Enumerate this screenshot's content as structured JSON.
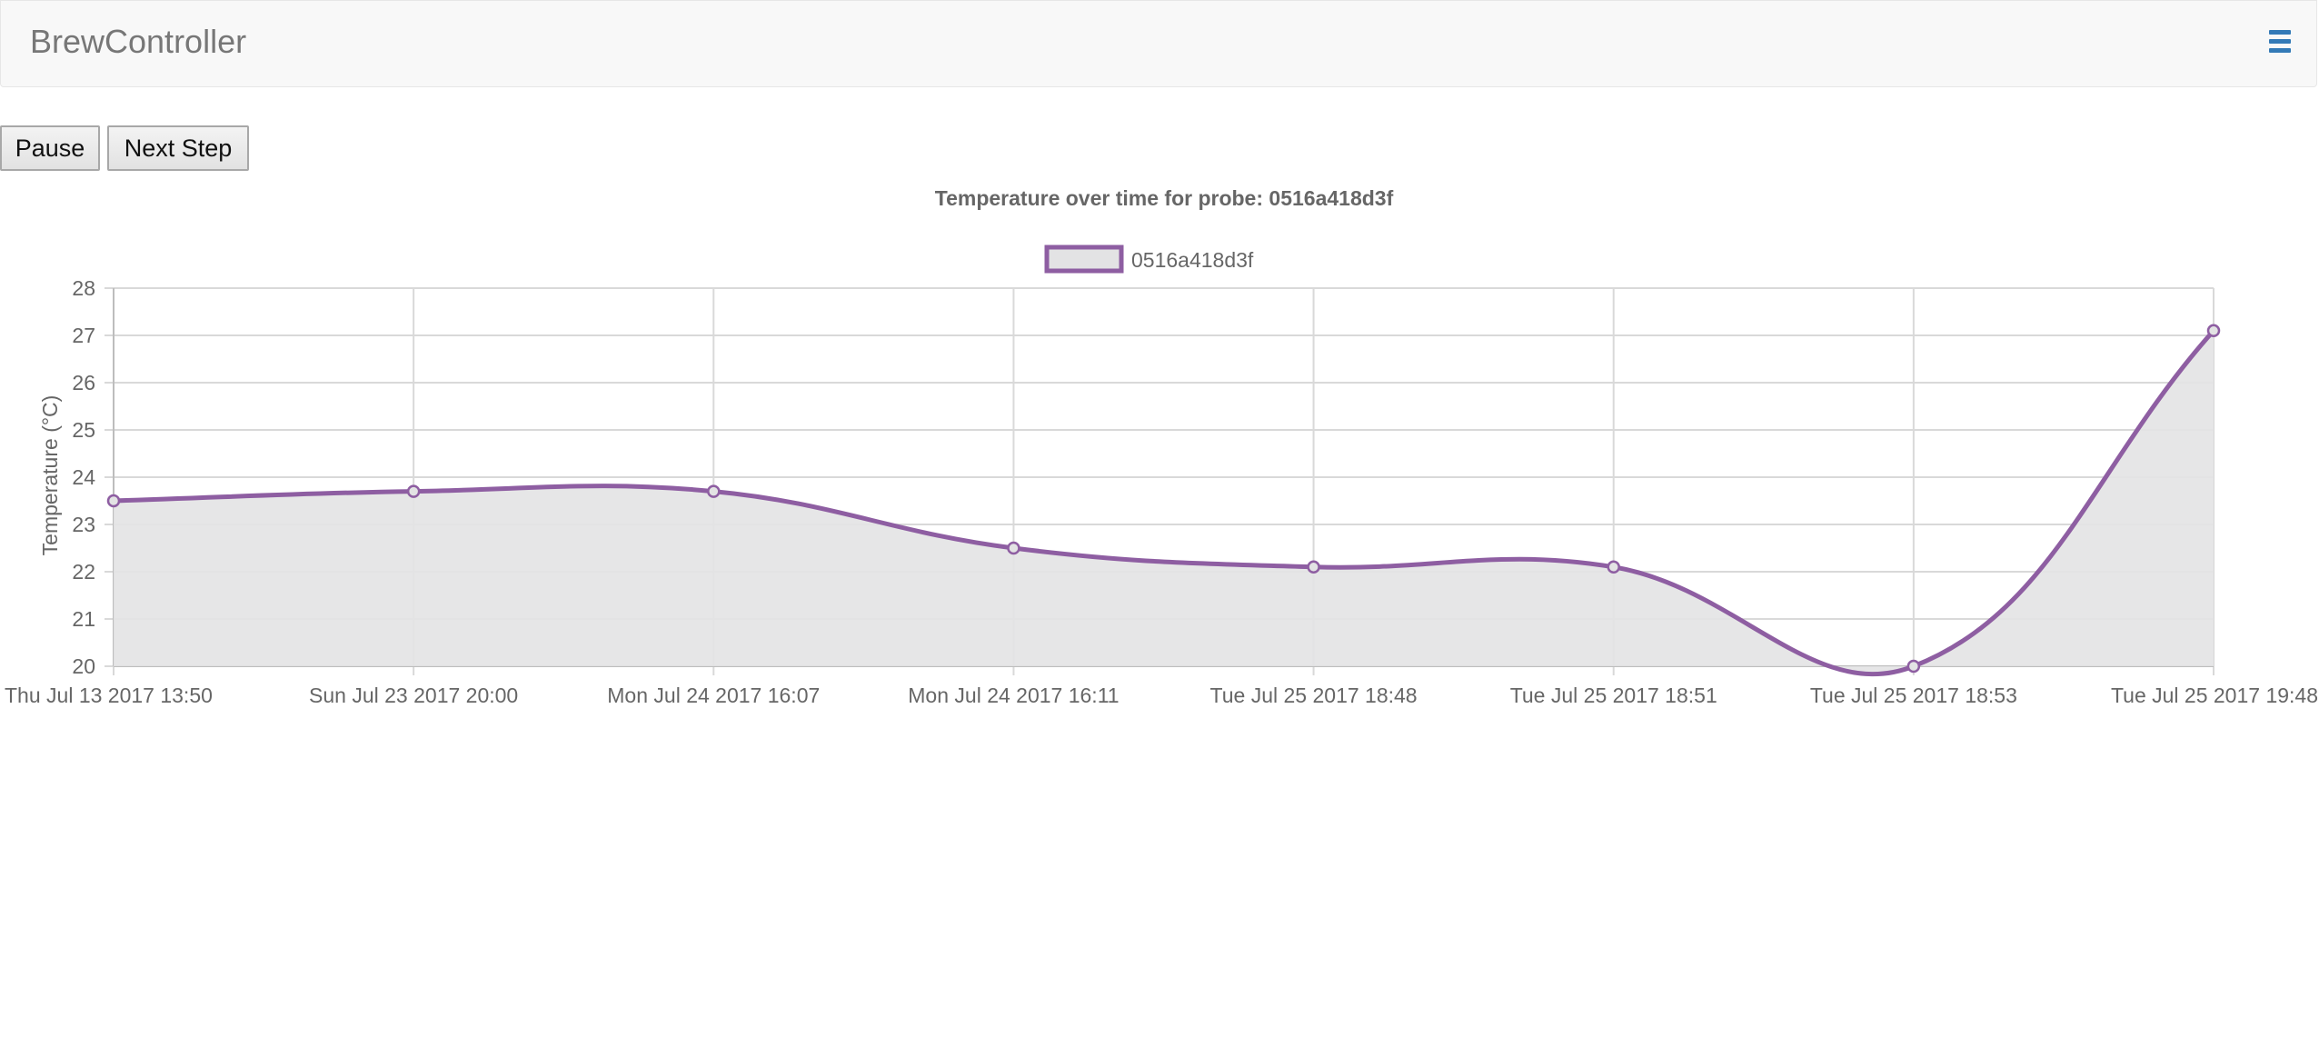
{
  "navbar": {
    "brand": "BrewController",
    "menu_icon": "hamburger-menu-icon",
    "menu_color": "#337ab7"
  },
  "controls": {
    "pause_label": "Pause",
    "next_step_label": "Next Step"
  },
  "chart_data": {
    "type": "line",
    "title": "Temperature over time for probe: 0516a418d3f",
    "xlabel": "",
    "ylabel": "Temperature (°C)",
    "categories": [
      "Thu Jul 13 2017 13:50",
      "Sun Jul 23 2017 20:00",
      "Mon Jul 24 2017 16:07",
      "Mon Jul 24 2017 16:11",
      "Tue Jul 25 2017 18:48",
      "Tue Jul 25 2017 18:51",
      "Tue Jul 25 2017 18:53",
      "Tue Jul 25 2017 19:48"
    ],
    "series": [
      {
        "name": "0516a418d3f",
        "values": [
          23.5,
          23.7,
          23.7,
          22.5,
          22.1,
          22.1,
          20.0,
          27.1
        ],
        "color": "#8e5ea2",
        "fill": "#e3e3e4"
      }
    ],
    "ylim": [
      20,
      28
    ],
    "yticks": [
      "20",
      "21",
      "22",
      "23",
      "24",
      "25",
      "26",
      "27",
      "28"
    ],
    "grid": true,
    "legend_position": "top",
    "curve": "smooth",
    "filled": true
  }
}
